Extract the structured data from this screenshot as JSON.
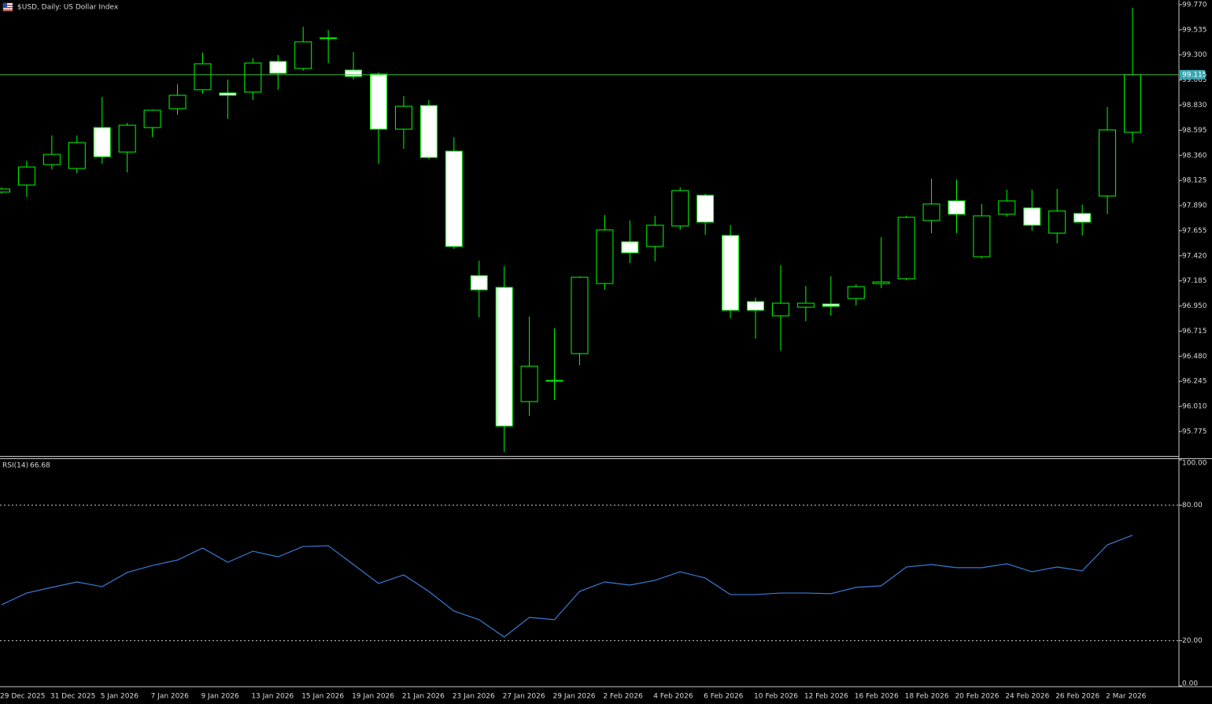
{
  "chart_data": [
    {
      "type": "candlestick",
      "title": "$USD, Daily:  US Dollar Index",
      "categories": [
        "29 Dec 2025",
        null,
        "31 Dec 2025",
        null,
        "5 Jan 2026",
        null,
        "7 Jan 2026",
        null,
        "9 Jan 2026",
        null,
        "13 Jan 2026",
        null,
        "15 Jan 2026",
        null,
        "19 Jan 2026",
        null,
        "21 Jan 2026",
        null,
        "23 Jan 2026",
        null,
        "27 Jan 2026",
        null,
        "29 Jan 2026",
        null,
        "2 Feb 2026",
        null,
        "4 Feb 2026",
        null,
        "6 Feb 2026",
        null,
        "10 Feb 2026",
        null,
        "12 Feb 2026",
        null,
        "16 Feb 2026",
        null,
        "18 Feb 2026",
        null,
        "20 Feb 2026",
        null,
        "24 Feb 2026",
        null,
        "26 Feb 2026",
        null,
        "2 Mar 2026",
        null
      ],
      "open": [
        98.016,
        98.082,
        98.273,
        98.237,
        98.62,
        98.391,
        98.62,
        98.797,
        98.974,
        98.944,
        98.952,
        99.239,
        99.173,
        99.46,
        99.158,
        99.121,
        98.605,
        98.826,
        98.399,
        97.234,
        97.124,
        96.055,
        96.246,
        96.504,
        97.16,
        97.551,
        97.507,
        97.699,
        97.986,
        97.61,
        96.991,
        96.858,
        96.939,
        96.969,
        97.02,
        97.16,
        97.205,
        97.75,
        97.934,
        97.411,
        97.809,
        97.868,
        97.632,
        97.816,
        97.979,
        98.576
      ],
      "high": [
        98.06,
        98.31,
        98.546,
        98.546,
        98.907,
        98.664,
        98.789,
        99.025,
        99.32,
        99.07,
        99.269,
        99.298,
        99.563,
        99.534,
        99.328,
        99.136,
        98.915,
        98.878,
        98.531,
        97.374,
        97.323,
        96.851,
        96.74,
        97.227,
        97.802,
        97.75,
        97.794,
        98.06,
        98.001,
        97.706,
        97.028,
        97.33,
        97.138,
        97.227,
        97.153,
        97.595,
        97.794,
        98.141,
        98.133,
        97.905,
        98.038,
        98.038,
        98.045,
        97.898,
        98.812,
        99.74
      ],
      "low": [
        98.001,
        97.971,
        98.229,
        98.192,
        98.281,
        98.2,
        98.531,
        98.738,
        98.937,
        98.701,
        98.878,
        98.974,
        99.151,
        99.224,
        99.07,
        98.281,
        98.421,
        98.325,
        97.485,
        96.844,
        95.583,
        95.922,
        96.07,
        96.394,
        97.101,
        97.352,
        97.367,
        97.662,
        97.617,
        96.836,
        96.644,
        96.534,
        96.807,
        96.858,
        96.954,
        97.116,
        97.19,
        97.632,
        97.632,
        97.396,
        97.787,
        97.654,
        97.536,
        97.61,
        97.809,
        98.48
      ],
      "close": [
        98.045,
        98.251,
        98.369,
        98.48,
        98.347,
        98.642,
        98.782,
        98.922,
        99.217,
        98.922,
        99.224,
        99.128,
        99.423,
        99.453,
        99.099,
        98.605,
        98.819,
        98.34,
        97.507,
        97.101,
        95.826,
        96.386,
        96.254,
        97.219,
        97.662,
        97.448,
        97.706,
        98.03,
        97.735,
        96.91,
        96.91,
        96.976,
        96.976,
        96.947,
        97.131,
        97.175,
        97.78,
        97.905,
        97.809,
        97.794,
        97.934,
        97.706,
        97.839,
        97.735,
        98.598,
        99.115
      ],
      "color": "#00ff00",
      "bull_fill": "#000000",
      "bear_fill": "#ffffff",
      "ylim": [
        95.539,
        99.814
      ],
      "yticks": [
        {
          "value": 99.77,
          "label": "99.770"
        },
        99.535,
        {
          "value": 99.3,
          "label": "99.300"
        },
        99.065,
        {
          "value": 98.83,
          "label": "98.830"
        },
        98.595,
        {
          "value": 98.36,
          "label": "98.360"
        },
        98.125,
        {
          "value": 97.89,
          "label": "97.890"
        },
        97.655,
        {
          "value": 97.42,
          "label": "97.420"
        },
        97.185,
        {
          "value": 96.95,
          "label": "96.950"
        },
        96.715,
        {
          "value": 96.48,
          "label": "96.480"
        },
        96.245,
        {
          "value": 96.01,
          "label": "96.010"
        },
        95.775
      ],
      "last_price": {
        "value": 99.115,
        "label": "99.115"
      },
      "last_price_color": "#3fc03f",
      "last_price_box": "#3aa6b0"
    },
    {
      "type": "line",
      "name": "RSI(14)",
      "series": [
        {
          "name": "RSI(14)",
          "color": "#3a7bd5",
          "values": [
            35.9,
            41.1,
            43.6,
            46.0,
            43.9,
            50.2,
            53.3,
            55.7,
            61.0,
            54.7,
            59.6,
            57.1,
            61.7,
            62.0,
            53.7,
            45.3,
            49.1,
            41.8,
            33.1,
            29.3,
            21.6,
            30.3,
            29.3,
            41.8,
            46.0,
            44.6,
            46.7,
            50.5,
            47.7,
            40.4,
            40.4,
            41.1,
            41.1,
            40.8,
            43.6,
            44.3,
            52.6,
            53.7,
            52.3,
            52.3,
            54.0,
            50.5,
            52.6,
            50.9,
            62.4,
            66.68
          ]
        }
      ],
      "ylim": [
        0,
        100
      ],
      "yticks": [
        {
          "value": 100,
          "label": "100.00"
        },
        {
          "value": 80,
          "label": "80.00"
        },
        {
          "value": 20,
          "label": "20.00"
        },
        {
          "value": 0,
          "label": "0.00"
        }
      ],
      "levels": [
        80,
        20
      ]
    }
  ]
}
